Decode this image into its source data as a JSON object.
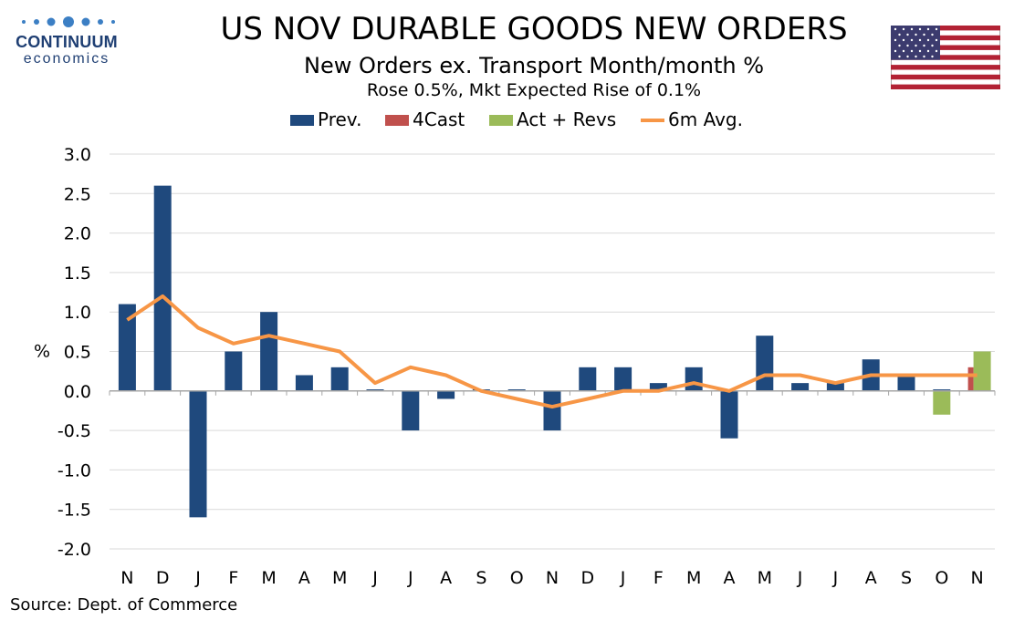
{
  "header": {
    "title": "US NOV DURABLE GOODS NEW ORDERS",
    "subtitle": "New Orders ex. Transport Month/month %",
    "note": "Rose 0.5%, Mkt Expected Rise of 0.1%"
  },
  "logo": {
    "name": "CONTINUUM",
    "sub": "economics",
    "color": "#1f3f73"
  },
  "flag": {
    "icon": "us-flag-icon"
  },
  "legend": [
    {
      "label": "Prev.",
      "color": "#1f497d",
      "kind": "bar"
    },
    {
      "label": "4Cast",
      "color": "#c0504d",
      "kind": "bar"
    },
    {
      "label": "Act + Revs",
      "color": "#9bbb59",
      "kind": "bar"
    },
    {
      "label": "6m Avg.",
      "color": "#f79646",
      "kind": "line"
    }
  ],
  "source": "Source: Dept. of Commerce",
  "chart_data": {
    "type": "bar",
    "ylabel": "%",
    "ylim": [
      -2.0,
      3.0
    ],
    "yticks": [
      "3.0",
      "2.5",
      "2.0",
      "1.5",
      "1.0",
      "0.5",
      "0.0",
      "-0.5",
      "-1.0",
      "-1.5",
      "-2.0"
    ],
    "categories": [
      "N",
      "D",
      "J",
      "F",
      "M",
      "A",
      "M",
      "J",
      "J",
      "A",
      "S",
      "O",
      "N",
      "D",
      "J",
      "F",
      "M",
      "A",
      "M",
      "J",
      "J",
      "A",
      "S",
      "O",
      "N"
    ],
    "grid": true,
    "legend_position": "top",
    "series": [
      {
        "name": "Prev.",
        "kind": "bar",
        "color": "#1f497d",
        "values": [
          1.1,
          2.6,
          -1.6,
          0.5,
          1.0,
          0.2,
          0.3,
          0.02,
          -0.5,
          -0.1,
          0.02,
          0.02,
          -0.5,
          0.3,
          0.3,
          0.1,
          0.3,
          -0.6,
          0.7,
          0.1,
          0.1,
          0.4,
          0.2,
          0.02,
          null
        ]
      },
      {
        "name": "4Cast",
        "kind": "bar",
        "color": "#c0504d",
        "values": [
          null,
          null,
          null,
          null,
          null,
          null,
          null,
          null,
          null,
          null,
          null,
          null,
          null,
          null,
          null,
          null,
          null,
          null,
          null,
          null,
          null,
          null,
          null,
          null,
          0.3
        ]
      },
      {
        "name": "Act + Revs",
        "kind": "bar",
        "color": "#9bbb59",
        "values": [
          null,
          null,
          null,
          null,
          null,
          null,
          null,
          null,
          null,
          null,
          null,
          null,
          null,
          null,
          null,
          null,
          null,
          null,
          null,
          null,
          null,
          null,
          null,
          -0.3,
          0.5
        ]
      },
      {
        "name": "6m Avg.",
        "kind": "line",
        "color": "#f79646",
        "values": [
          0.9,
          1.2,
          0.8,
          0.6,
          0.7,
          0.6,
          0.5,
          0.1,
          0.3,
          0.2,
          0.0,
          -0.1,
          -0.2,
          -0.1,
          0.0,
          0.0,
          0.1,
          0.0,
          0.2,
          0.2,
          0.1,
          0.2,
          0.2,
          0.2,
          0.2
        ]
      }
    ]
  }
}
